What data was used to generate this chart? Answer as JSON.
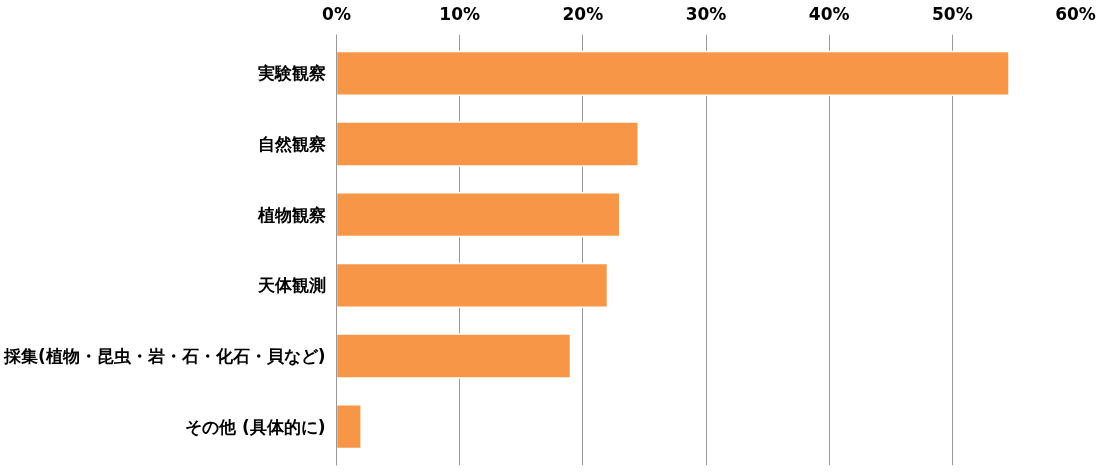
{
  "chart_data": {
    "type": "bar",
    "orientation": "horizontal",
    "categories": [
      "実験観察",
      "自然観察",
      "植物観察",
      "天体観測",
      "採集(植物・昆虫・岩・石・化石・貝など)",
      "その他 (具体的に)"
    ],
    "values": [
      54.6,
      24.5,
      23,
      22,
      19,
      2
    ],
    "color": "#f79646",
    "xlim": [
      0,
      60
    ],
    "xticks": [
      {
        "value": 0,
        "label": "0%"
      },
      {
        "value": 10,
        "label": "10%"
      },
      {
        "value": 20,
        "label": "20%"
      },
      {
        "value": 30,
        "label": "30%"
      },
      {
        "value": 40,
        "label": "40%"
      },
      {
        "value": 50,
        "label": "50%"
      },
      {
        "value": 60,
        "label": "60%"
      }
    ],
    "grid": "x"
  }
}
